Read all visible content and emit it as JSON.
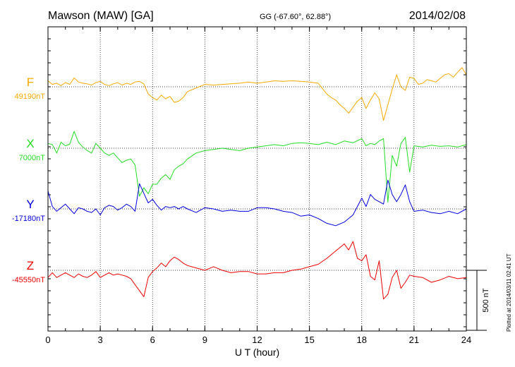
{
  "chart_data": {
    "type": "line",
    "title": "Mawson (MAW)  [GA]",
    "coordinates": "GG (-67.60°,  62.88°)",
    "date": "2014/02/08",
    "xlabel": "U T (hour)",
    "xlim": [
      0,
      24
    ],
    "x_ticks": [
      "0",
      "3",
      "6",
      "9",
      "12",
      "15",
      "18",
      "21",
      "24"
    ],
    "scale_bar_label": "500 nT",
    "scale_bar_nT": 500,
    "plotted_note": "Plotted at 2014/03/11 02:41 UT",
    "grid": true,
    "series": [
      {
        "name": "F",
        "base_label": "49190nT",
        "color": "#f5a800",
        "x": [
          0,
          0.25,
          0.5,
          0.75,
          1,
          1.25,
          1.5,
          1.75,
          2,
          2.25,
          2.5,
          2.75,
          3,
          3.25,
          3.5,
          3.75,
          4,
          4.25,
          4.5,
          4.75,
          5,
          5.25,
          5.5,
          5.75,
          6,
          6.25,
          6.5,
          6.75,
          7,
          7.25,
          7.5,
          7.75,
          8,
          8.5,
          9,
          9.5,
          10,
          10.5,
          11,
          11.5,
          12,
          12.5,
          13,
          13.5,
          14,
          14.5,
          15,
          15.5,
          16,
          16.25,
          16.5,
          16.75,
          17,
          17.25,
          17.5,
          17.75,
          18,
          18.25,
          18.5,
          18.75,
          19,
          19.25,
          19.5,
          19.75,
          20,
          20.25,
          20.5,
          20.75,
          21,
          21.25,
          21.5,
          21.75,
          22,
          22.25,
          22.5,
          22.75,
          23,
          23.25,
          23.5,
          23.75,
          24
        ],
        "y": [
          50,
          20,
          30,
          10,
          35,
          20,
          75,
          40,
          30,
          25,
          15,
          35,
          45,
          20,
          10,
          25,
          35,
          15,
          30,
          20,
          40,
          45,
          25,
          -60,
          -90,
          -110,
          -70,
          -100,
          -80,
          -130,
          -120,
          -90,
          -40,
          -10,
          20,
          15,
          20,
          25,
          30,
          40,
          30,
          40,
          50,
          45,
          50,
          45,
          40,
          30,
          -60,
          -90,
          -110,
          -150,
          -180,
          -220,
          -170,
          -120,
          -90,
          -180,
          -110,
          -50,
          -100,
          -280,
          -150,
          -20,
          100,
          0,
          -30,
          80,
          70,
          20,
          30,
          60,
          50,
          40,
          70,
          100,
          110,
          80,
          120,
          160,
          100
        ]
      },
      {
        "name": "X",
        "base_label": "7000nT",
        "color": "#22dd22",
        "x": [
          0,
          0.25,
          0.5,
          0.75,
          1,
          1.25,
          1.5,
          1.75,
          2,
          2.25,
          2.5,
          2.75,
          3,
          3.25,
          3.5,
          3.75,
          4,
          4.25,
          4.5,
          4.75,
          5,
          5.25,
          5.5,
          5.75,
          6,
          6.25,
          6.5,
          6.75,
          7,
          7.25,
          7.5,
          7.75,
          8,
          8.5,
          9,
          9.5,
          10,
          10.5,
          11,
          11.5,
          12,
          12.5,
          13,
          13.5,
          14,
          14.5,
          15,
          15.5,
          16,
          16.5,
          17,
          17.5,
          18,
          18.25,
          18.5,
          18.75,
          19,
          19.25,
          19.5,
          19.75,
          20,
          20.25,
          20.5,
          20.75,
          21,
          21.5,
          22,
          22.5,
          23,
          23.5,
          24
        ],
        "y": [
          40,
          30,
          -40,
          50,
          20,
          35,
          140,
          50,
          10,
          -20,
          -40,
          40,
          0,
          -40,
          -60,
          -40,
          -80,
          -120,
          -100,
          -90,
          -140,
          -400,
          -330,
          -380,
          -300,
          -300,
          -250,
          -220,
          -260,
          -180,
          -150,
          -130,
          -90,
          -40,
          -20,
          -10,
          0,
          -10,
          -20,
          0,
          10,
          20,
          30,
          20,
          40,
          45,
          40,
          30,
          50,
          30,
          60,
          45,
          80,
          20,
          40,
          30,
          60,
          80,
          -450,
          -60,
          -150,
          40,
          90,
          -200,
          20,
          10,
          25,
          15,
          20,
          10,
          30
        ]
      },
      {
        "name": "Y",
        "base_label": "-17180nT",
        "color": "#0000dd",
        "x": [
          0,
          0.25,
          0.5,
          0.75,
          1,
          1.25,
          1.5,
          1.75,
          2,
          2.25,
          2.5,
          2.75,
          3,
          3.25,
          3.5,
          3.75,
          4,
          4.25,
          4.5,
          4.75,
          5,
          5.25,
          5.5,
          5.75,
          6,
          6.25,
          6.5,
          6.75,
          7,
          7.25,
          7.5,
          7.75,
          8,
          8.5,
          9,
          9.5,
          10,
          10.5,
          11,
          11.5,
          12,
          12.5,
          13,
          13.5,
          14,
          14.5,
          15,
          15.5,
          16,
          16.5,
          17,
          17.5,
          18,
          18.25,
          18.5,
          18.75,
          19,
          19.25,
          19.5,
          19.75,
          20,
          20.25,
          20.5,
          20.75,
          21,
          21.5,
          22,
          22.5,
          23,
          23.5,
          24
        ],
        "y": [
          150,
          20,
          -20,
          10,
          40,
          0,
          -40,
          10,
          0,
          -20,
          -30,
          0,
          -50,
          10,
          30,
          20,
          -10,
          10,
          40,
          20,
          -20,
          210,
          130,
          50,
          80,
          30,
          -10,
          20,
          10,
          20,
          0,
          20,
          0,
          -30,
          10,
          0,
          -20,
          -10,
          -20,
          -20,
          10,
          10,
          0,
          -20,
          -30,
          -60,
          -50,
          -80,
          -120,
          -140,
          -110,
          -50,
          90,
          20,
          120,
          80,
          60,
          40,
          240,
          120,
          60,
          120,
          200,
          60,
          -20,
          -10,
          -30,
          -40,
          -20,
          -40,
          0
        ]
      },
      {
        "name": "Z",
        "base_label": "-45550nT",
        "color": "#ee0000",
        "x": [
          0,
          0.25,
          0.5,
          0.75,
          1,
          1.25,
          1.5,
          1.75,
          2,
          2.25,
          2.5,
          2.75,
          3,
          3.25,
          3.5,
          3.75,
          4,
          4.25,
          4.5,
          4.75,
          5,
          5.25,
          5.5,
          5.75,
          6,
          6.25,
          6.5,
          6.75,
          7,
          7.25,
          7.5,
          7.75,
          8,
          8.5,
          9,
          9.5,
          10,
          10.5,
          11,
          11.5,
          12,
          12.5,
          13,
          13.5,
          14,
          14.5,
          15,
          15.5,
          16,
          16.5,
          17,
          17.25,
          17.5,
          17.75,
          18,
          18.25,
          18.5,
          18.75,
          19,
          19.25,
          19.5,
          19.75,
          20,
          20.25,
          20.5,
          20.75,
          21,
          21.5,
          22,
          22.5,
          23,
          23.5,
          24
        ],
        "y": [
          -60,
          -20,
          -60,
          -40,
          -20,
          -40,
          -60,
          -30,
          -50,
          -60,
          -40,
          -10,
          -60,
          -40,
          -20,
          -40,
          -30,
          -40,
          -50,
          -70,
          -120,
          -170,
          -220,
          -60,
          -10,
          20,
          60,
          30,
          80,
          110,
          90,
          60,
          40,
          20,
          0,
          30,
          0,
          -20,
          -10,
          -10,
          -30,
          -30,
          -20,
          -20,
          0,
          10,
          30,
          50,
          100,
          160,
          220,
          170,
          240,
          100,
          80,
          130,
          -50,
          -80,
          80,
          -240,
          -200,
          -60,
          0,
          -150,
          -100,
          -40,
          -50,
          -60,
          -100,
          -80,
          -50,
          -70,
          -60
        ]
      }
    ]
  }
}
